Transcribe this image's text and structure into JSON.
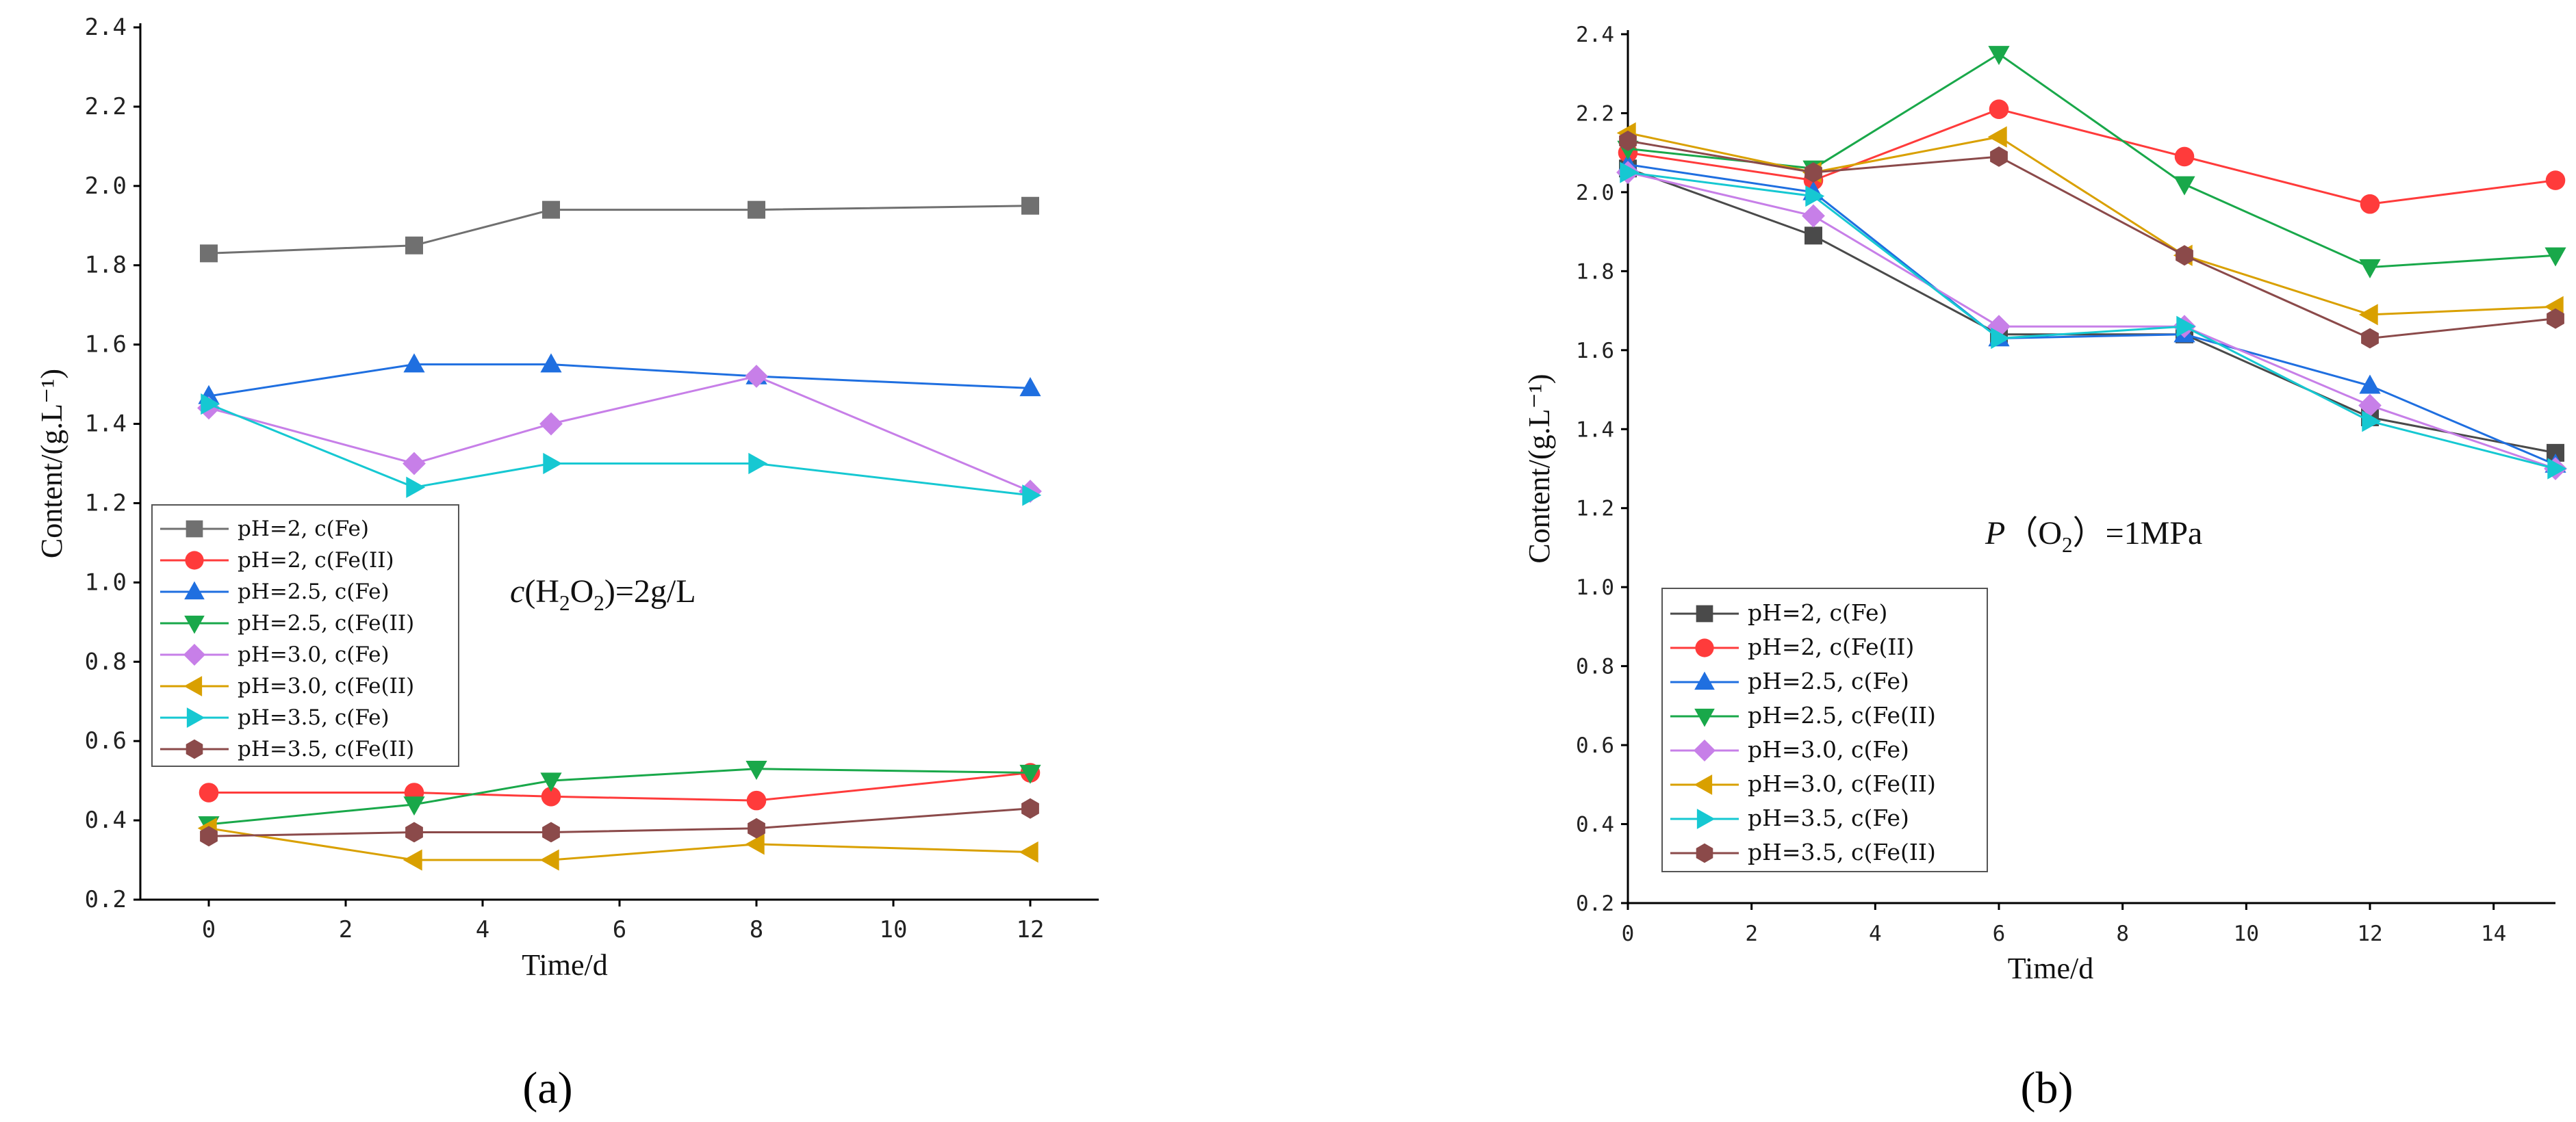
{
  "chart_data": [
    {
      "type": "line",
      "panel_label": "(a)",
      "title": "",
      "xlabel": "Time/d",
      "ylabel": "Content/(g.L⁻¹)",
      "xlim": [
        -1,
        13
      ],
      "ylim": [
        0.2,
        2.4
      ],
      "xticks": [
        0,
        2,
        4,
        6,
        8,
        10,
        12
      ],
      "xtick_labels": [
        "0",
        "2",
        "4",
        "6",
        "8",
        "10",
        "12"
      ],
      "yticks": [
        0.2,
        0.4,
        0.6,
        0.8,
        1.0,
        1.2,
        1.4,
        1.6,
        1.8,
        2.0,
        2.2,
        2.4
      ],
      "ytick_labels": [
        "0.2",
        "0.4",
        "0.6",
        "0.8",
        "1.0",
        "1.2",
        "1.4",
        "1.6",
        "1.8",
        "2.0",
        "2.2",
        "2.4"
      ],
      "legend_position": "lower-left",
      "annotation": {
        "italic": "c",
        "pre": "(H",
        "sub1": "2",
        "mid": "O",
        "sub2": "2",
        "post": ")=2g/L"
      },
      "x": [
        0,
        3,
        5,
        8,
        12
      ],
      "series": [
        {
          "name": "pH=2, c(Fe)",
          "color": "#707070",
          "marker": "square",
          "values": [
            1.83,
            1.85,
            1.94,
            1.94,
            1.95
          ]
        },
        {
          "name": "pH=2, c(Fe(II)",
          "color": "#ff3b3b",
          "marker": "circle",
          "values": [
            0.47,
            0.47,
            0.46,
            0.45,
            0.52
          ]
        },
        {
          "name": "pH=2.5, c(Fe)",
          "color": "#1f6fe0",
          "marker": "triangle-up",
          "values": [
            1.47,
            1.55,
            1.55,
            1.52,
            1.49
          ]
        },
        {
          "name": "pH=2.5, c(Fe(II)",
          "color": "#19a84a",
          "marker": "triangle-down",
          "values": [
            0.39,
            0.44,
            0.5,
            0.53,
            0.52
          ]
        },
        {
          "name": "pH=3.0, c(Fe)",
          "color": "#c77fe8",
          "marker": "diamond",
          "values": [
            1.44,
            1.3,
            1.4,
            1.52,
            1.23
          ]
        },
        {
          "name": "pH=3.0, c(Fe(II)",
          "color": "#d9a000",
          "marker": "triangle-left",
          "values": [
            0.38,
            0.3,
            0.3,
            0.34,
            0.32
          ]
        },
        {
          "name": "pH=3.5, c(Fe)",
          "color": "#16c8d2",
          "marker": "triangle-right",
          "values": [
            1.45,
            1.24,
            1.3,
            1.3,
            1.22
          ]
        },
        {
          "name": "pH=3.5, c(Fe(II)",
          "color": "#8b4a4a",
          "marker": "hexagon",
          "values": [
            0.36,
            0.37,
            0.37,
            0.38,
            0.43
          ]
        }
      ]
    },
    {
      "type": "line",
      "panel_label": "(b)",
      "title": "",
      "xlabel": "Time/d",
      "ylabel": "Content/(g.L⁻¹)",
      "xlim": [
        0,
        15
      ],
      "ylim": [
        0.2,
        2.4
      ],
      "xticks": [
        0,
        2,
        4,
        6,
        8,
        10,
        12,
        14
      ],
      "xtick_labels": [
        "0",
        "2",
        "4",
        "6",
        "8",
        "10",
        "12",
        "14"
      ],
      "yticks": [
        0.2,
        0.4,
        0.6,
        0.8,
        1.0,
        1.2,
        1.4,
        1.6,
        1.8,
        2.0,
        2.2,
        2.4
      ],
      "ytick_labels": [
        "0.2",
        "0.4",
        "0.6",
        "0.8",
        "1.0",
        "1.2",
        "1.4",
        "1.6",
        "1.8",
        "2.0",
        "2.2",
        "2.4"
      ],
      "legend_position": "lower-left",
      "annotation": {
        "italic": "P",
        "pre": "（O",
        "sub1": "2",
        "mid": "）",
        "sub2": "",
        "post": "=1MPa"
      },
      "x": [
        0,
        3,
        6,
        9,
        12,
        15
      ],
      "series": [
        {
          "name": "pH=2, c(Fe)",
          "color": "#4a4a4a",
          "marker": "square",
          "values": [
            2.06,
            1.89,
            1.64,
            1.64,
            1.43,
            1.34
          ]
        },
        {
          "name": "pH=2, c(Fe(II)",
          "color": "#ff3b3b",
          "marker": "circle",
          "values": [
            2.1,
            2.03,
            2.21,
            2.09,
            1.97,
            2.03
          ]
        },
        {
          "name": "pH=2.5, c(Fe)",
          "color": "#1f6fe0",
          "marker": "triangle-up",
          "values": [
            2.07,
            2.0,
            1.63,
            1.64,
            1.51,
            1.31
          ]
        },
        {
          "name": "pH=2.5, c(Fe(II)",
          "color": "#19a84a",
          "marker": "triangle-down",
          "values": [
            2.11,
            2.06,
            2.35,
            2.02,
            1.81,
            1.84
          ]
        },
        {
          "name": "pH=3.0, c(Fe)",
          "color": "#c77fe8",
          "marker": "diamond",
          "values": [
            2.05,
            1.94,
            1.66,
            1.66,
            1.46,
            1.3
          ]
        },
        {
          "name": "pH=3.0, c(Fe(II)",
          "color": "#d9a000",
          "marker": "triangle-left",
          "values": [
            2.15,
            2.05,
            2.14,
            1.84,
            1.69,
            1.71
          ]
        },
        {
          "name": "pH=3.5, c(Fe)",
          "color": "#16c8d2",
          "marker": "triangle-right",
          "values": [
            2.05,
            1.99,
            1.63,
            1.66,
            1.42,
            1.3
          ]
        },
        {
          "name": "pH=3.5, c(Fe(II)",
          "color": "#8b4a4a",
          "marker": "hexagon",
          "values": [
            2.13,
            2.05,
            2.09,
            1.84,
            1.63,
            1.68
          ]
        }
      ]
    }
  ]
}
